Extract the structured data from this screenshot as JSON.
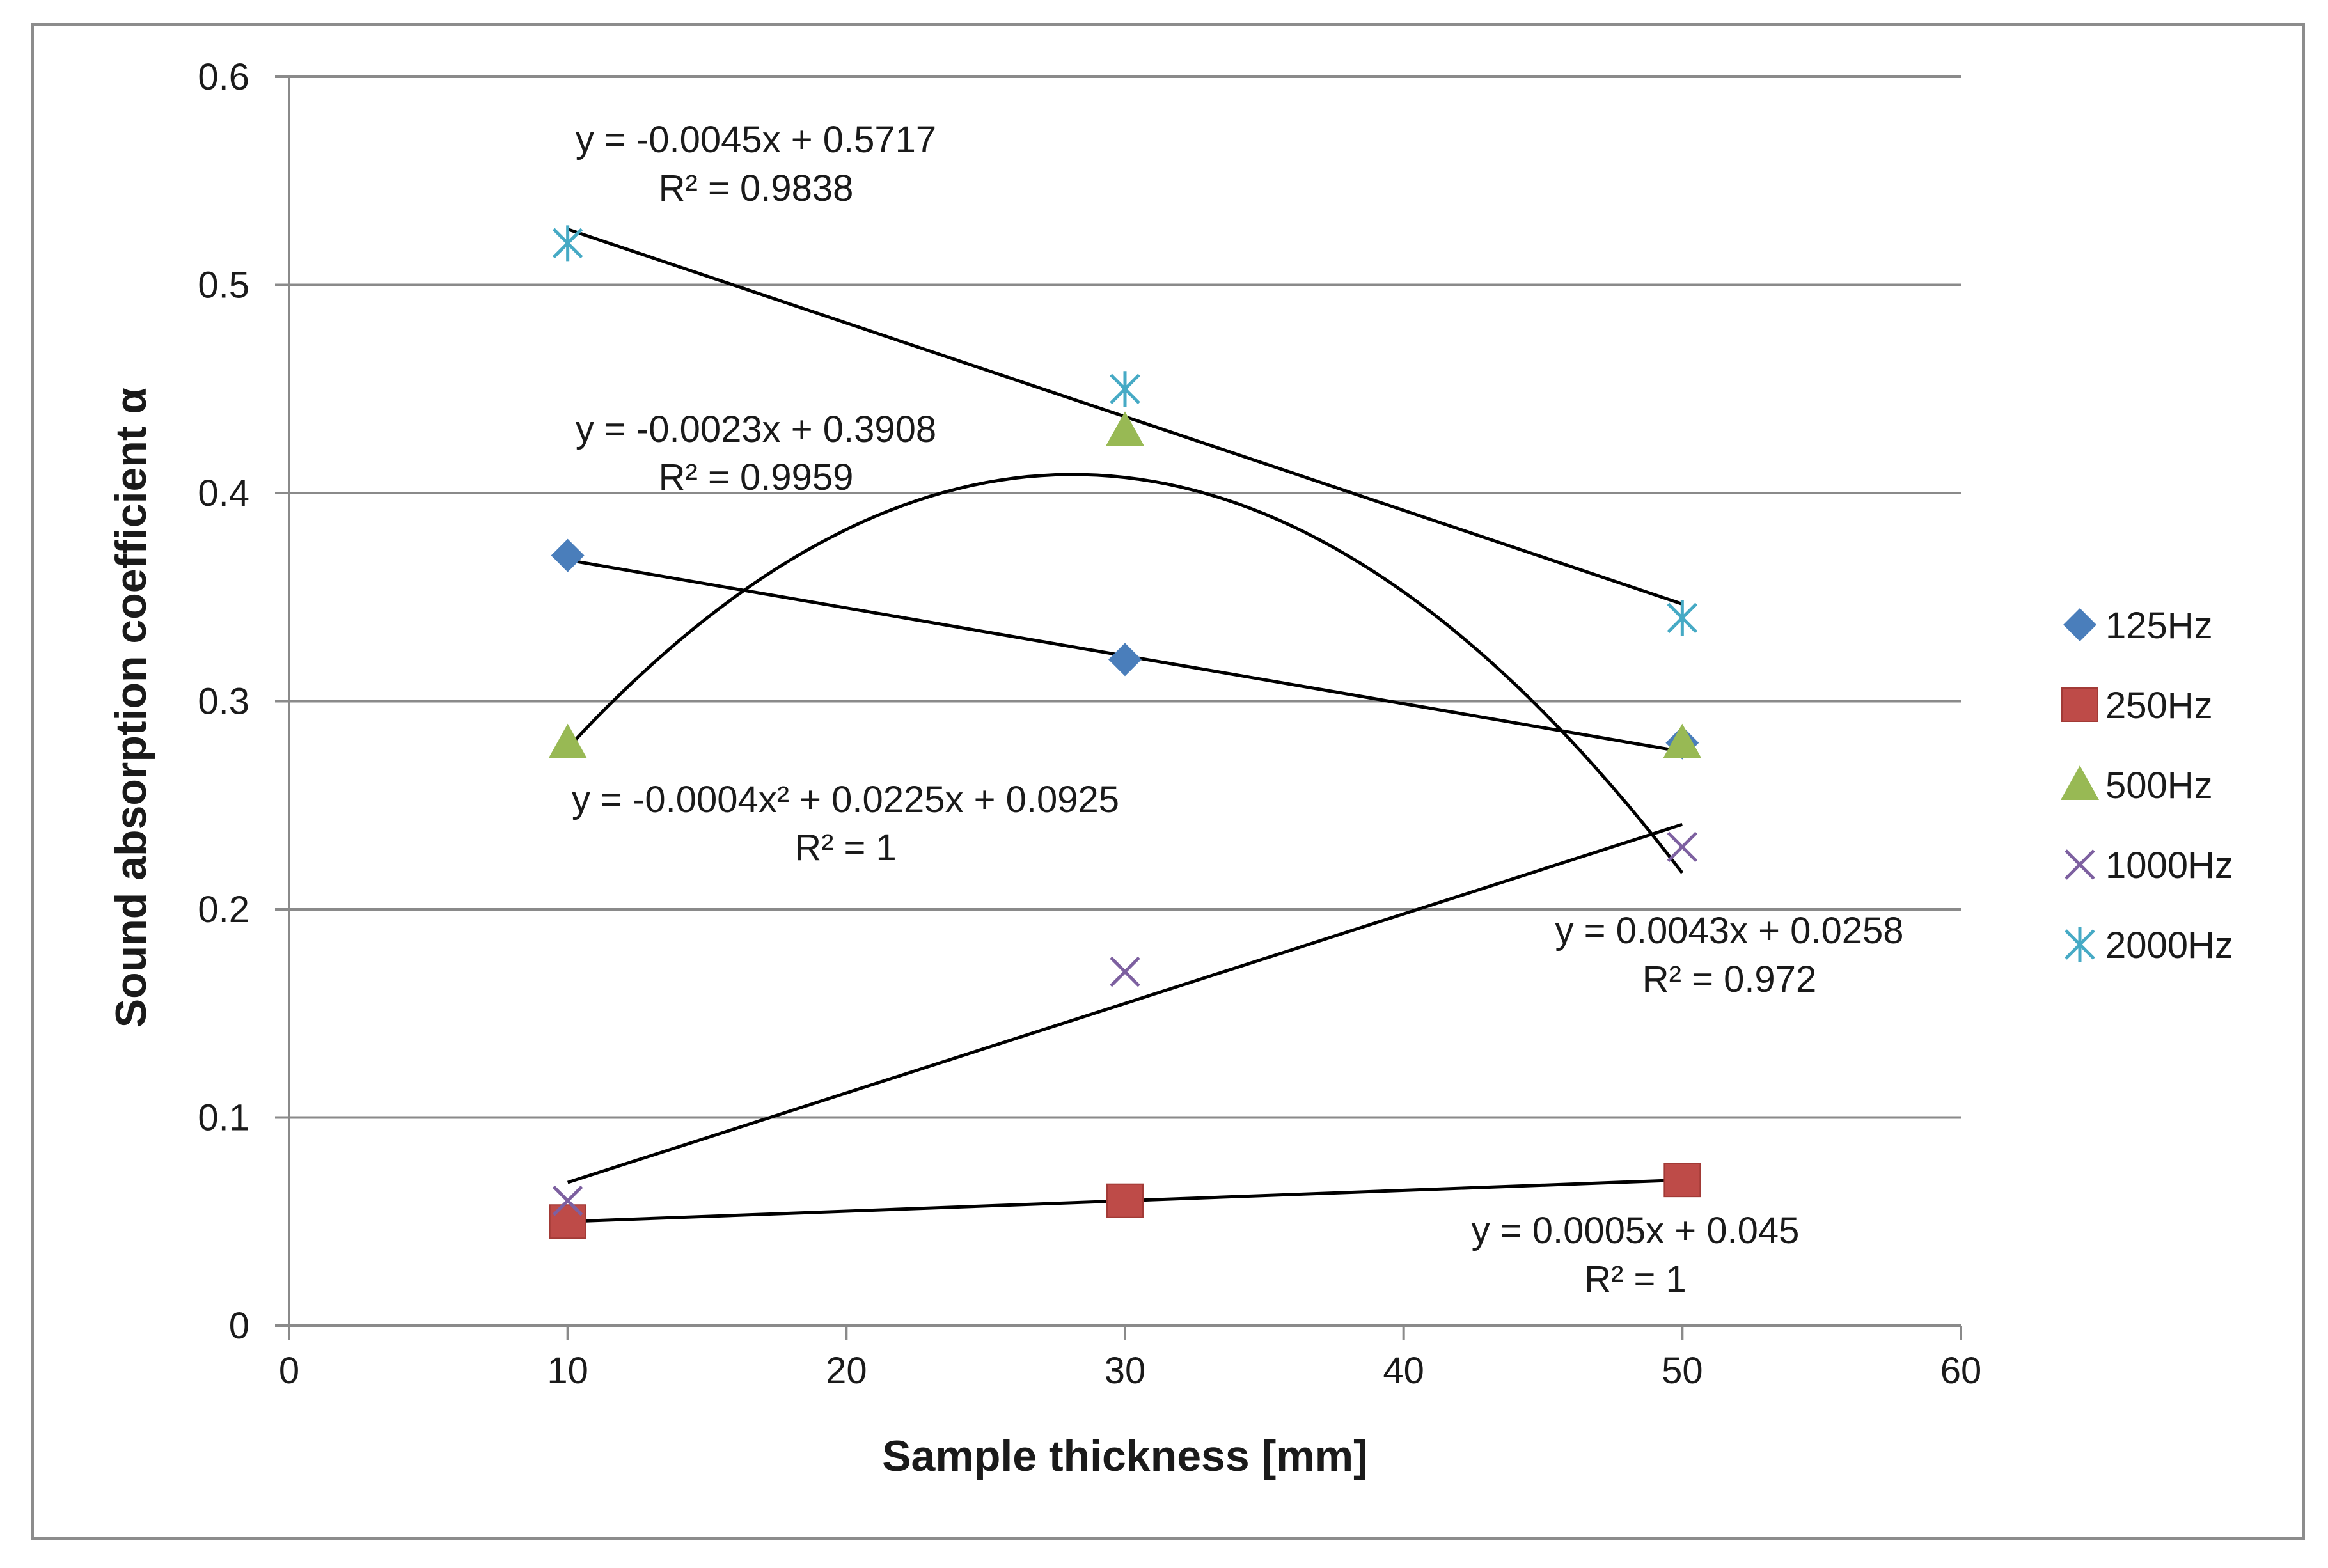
{
  "chart_data": {
    "type": "scatter",
    "title": "",
    "xlabel": "Sample thickness [mm]",
    "ylabel": "Sound absorption coefficient α",
    "xlim": [
      0,
      60
    ],
    "ylim": [
      0,
      0.6
    ],
    "xticks": [
      "0",
      "10",
      "20",
      "30",
      "40",
      "50",
      "60"
    ],
    "yticks": [
      "0",
      "0.1",
      "0.2",
      "0.3",
      "0.4",
      "0.5",
      "0.6"
    ],
    "grid": "horizontal",
    "legend_position": "right",
    "x": [
      10,
      30,
      50
    ],
    "series": [
      {
        "name": "125Hz",
        "marker": "diamond",
        "color": "#4a7ebb",
        "values": [
          0.37,
          0.32,
          0.28
        ]
      },
      {
        "name": "250Hz",
        "marker": "square",
        "color": "#be4b48",
        "values": [
          0.05,
          0.06,
          0.07
        ]
      },
      {
        "name": "500Hz",
        "marker": "triangle",
        "color": "#98b954",
        "values": [
          0.28,
          0.43,
          0.28
        ]
      },
      {
        "name": "1000Hz",
        "marker": "x",
        "color": "#7d60a0",
        "values": [
          0.06,
          0.17,
          0.23
        ]
      },
      {
        "name": "2000Hz",
        "marker": "star",
        "color": "#46aac5",
        "values": [
          0.52,
          0.45,
          0.34
        ]
      }
    ],
    "trendlines": [
      {
        "series": "2000Hz",
        "kind": "linear",
        "coef": [
          -0.0045,
          0.5717
        ],
        "x_range": [
          10,
          50
        ],
        "equation": "y = -0.0045x + 0.5717",
        "r2": "R² = 0.9838"
      },
      {
        "series": "125Hz",
        "kind": "linear",
        "coef": [
          -0.0023,
          0.3908
        ],
        "x_range": [
          10,
          50
        ],
        "equation": "y = -0.0023x + 0.3908",
        "r2": "R² = 0.9959"
      },
      {
        "series": "500Hz",
        "kind": "poly2",
        "coef": [
          -0.0004,
          0.0225,
          0.0925
        ],
        "x_range": [
          10,
          50
        ],
        "equation": "y = -0.0004x² + 0.0225x + 0.0925",
        "r2": "R² = 1"
      },
      {
        "series": "1000Hz",
        "kind": "linear",
        "coef": [
          0.0043,
          0.0258
        ],
        "x_range": [
          10,
          50
        ],
        "equation": "y = 0.0043x + 0.0258",
        "r2": "R² = 0.972"
      },
      {
        "series": "250Hz",
        "kind": "linear",
        "coef": [
          0.0005,
          0.045
        ],
        "x_range": [
          10,
          50
        ],
        "equation": "y = 0.0005x + 0.045",
        "r2": "R² = 1"
      }
    ]
  }
}
